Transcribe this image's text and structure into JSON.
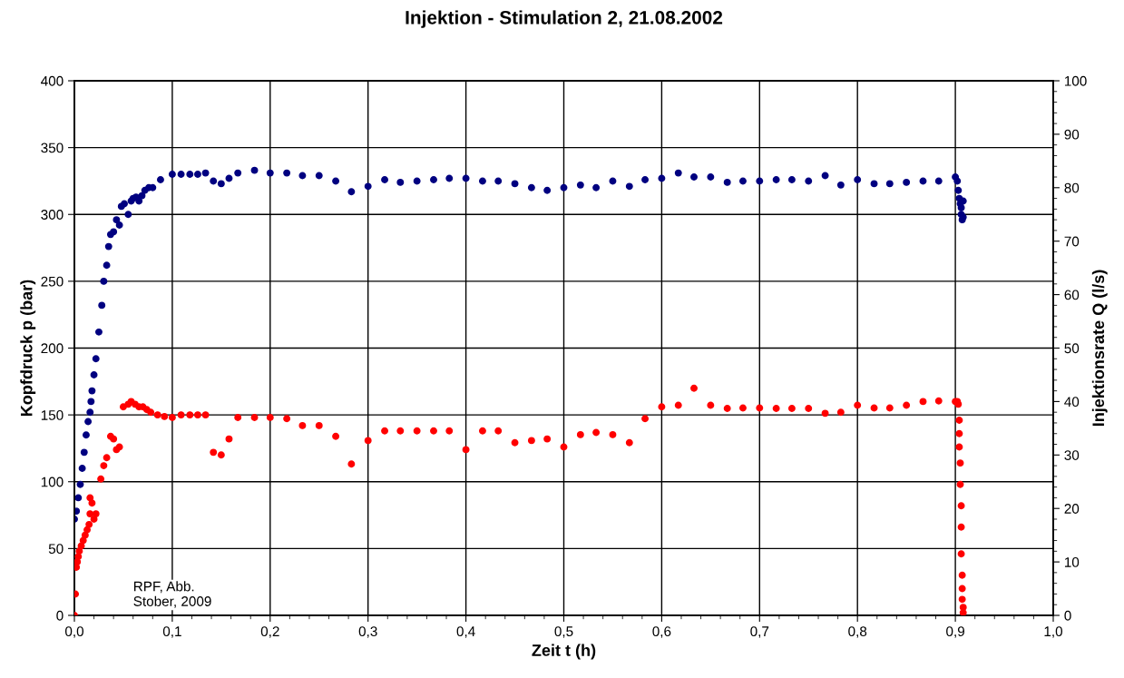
{
  "chart_data": {
    "type": "scatter",
    "title": "Injektion - Stimulation 2, 21.08.2002",
    "xlabel": "Zeit t (h)",
    "ylabel": "Kopfdruck p (bar)",
    "y2label": "Injektionsrate Q (l/s)",
    "xlim": [
      0,
      1.0
    ],
    "xticks": [
      {
        "value": 0,
        "label": "0,0"
      },
      {
        "value": 0.1,
        "label": "0,1"
      },
      {
        "value": 0.2,
        "label": "0,2"
      },
      {
        "value": 0.3,
        "label": "0,3"
      },
      {
        "value": 0.4,
        "label": "0,4"
      },
      {
        "value": 0.5,
        "label": "0,5"
      },
      {
        "value": 0.6,
        "label": "0,6"
      },
      {
        "value": 0.7,
        "label": "0,7"
      },
      {
        "value": 0.8,
        "label": "0,8"
      },
      {
        "value": 0.9,
        "label": "0,9"
      },
      {
        "value": 1.0,
        "label": "1,0"
      }
    ],
    "ylim": [
      0,
      400
    ],
    "yticks": [
      0,
      50,
      100,
      150,
      200,
      250,
      300,
      350,
      400
    ],
    "y2lim": [
      0,
      100
    ],
    "y2ticks": [
      0,
      10,
      20,
      30,
      40,
      50,
      60,
      70,
      80,
      90,
      100
    ],
    "grid": true,
    "marker": "circle",
    "legend": false,
    "annotations": [
      "RPF, Abb.\nStober, 2009"
    ],
    "series": [
      {
        "color": "#000080",
        "x": [
          0.0,
          0.002,
          0.004,
          0.006,
          0.008,
          0.01,
          0.012,
          0.014,
          0.016,
          0.017,
          0.018,
          0.02,
          0.022,
          0.025,
          0.028,
          0.03,
          0.033,
          0.035,
          0.037,
          0.04,
          0.043,
          0.046,
          0.048,
          0.051,
          0.055,
          0.058,
          0.06,
          0.063,
          0.066,
          0.069,
          0.072,
          0.076,
          0.08,
          0.088,
          0.1,
          0.109,
          0.118,
          0.126,
          0.134,
          0.142,
          0.15,
          0.158,
          0.167,
          0.184,
          0.2,
          0.217,
          0.233,
          0.25,
          0.267,
          0.283,
          0.3,
          0.317,
          0.333,
          0.35,
          0.367,
          0.383,
          0.4,
          0.417,
          0.433,
          0.45,
          0.467,
          0.483,
          0.5,
          0.517,
          0.533,
          0.55,
          0.567,
          0.583,
          0.6,
          0.617,
          0.633,
          0.65,
          0.667,
          0.683,
          0.7,
          0.717,
          0.733,
          0.75,
          0.767,
          0.783,
          0.8,
          0.817,
          0.833,
          0.85,
          0.867,
          0.883,
          0.9,
          0.902,
          0.903,
          0.904,
          0.905,
          0.906,
          0.906,
          0.907,
          0.908,
          0.908
        ],
        "values": [
          72,
          78,
          88,
          98,
          110,
          122,
          135,
          145,
          152,
          160,
          168,
          180,
          192,
          212,
          232,
          250,
          262,
          276,
          285,
          287,
          296,
          292,
          306,
          308,
          300,
          310,
          312,
          313,
          310,
          314,
          318,
          320,
          320,
          326,
          330,
          330,
          330,
          330,
          331,
          325,
          323,
          327,
          331,
          333,
          331,
          331,
          329,
          329,
          325,
          317,
          321,
          326,
          324,
          325,
          326,
          327,
          327,
          325,
          325,
          323,
          320,
          318,
          320,
          322,
          320,
          325,
          321,
          326,
          327,
          331,
          328,
          328,
          324,
          325,
          325,
          326,
          326,
          325,
          329,
          322,
          326,
          323,
          323,
          324,
          325,
          325,
          328,
          325,
          318,
          312,
          308,
          305,
          300,
          296,
          298,
          310
        ]
      },
      {
        "color": "#ff0000",
        "axis": "y2",
        "x": [
          0.0,
          0.001,
          0.002,
          0.003,
          0.004,
          0.005,
          0.007,
          0.009,
          0.011,
          0.013,
          0.015,
          0.016,
          0.016,
          0.018,
          0.02,
          0.022,
          0.027,
          0.03,
          0.033,
          0.037,
          0.04,
          0.043,
          0.046,
          0.05,
          0.055,
          0.058,
          0.062,
          0.066,
          0.07,
          0.074,
          0.078,
          0.085,
          0.092,
          0.1,
          0.109,
          0.118,
          0.126,
          0.134,
          0.142,
          0.15,
          0.158,
          0.167,
          0.184,
          0.2,
          0.217,
          0.233,
          0.25,
          0.267,
          0.283,
          0.3,
          0.317,
          0.333,
          0.35,
          0.367,
          0.383,
          0.4,
          0.417,
          0.433,
          0.45,
          0.467,
          0.483,
          0.5,
          0.517,
          0.533,
          0.55,
          0.567,
          0.583,
          0.6,
          0.617,
          0.633,
          0.65,
          0.667,
          0.683,
          0.7,
          0.717,
          0.733,
          0.75,
          0.767,
          0.783,
          0.8,
          0.817,
          0.833,
          0.85,
          0.867,
          0.883,
          0.9,
          0.902,
          0.903,
          0.904,
          0.904,
          0.904,
          0.905,
          0.905,
          0.906,
          0.906,
          0.906,
          0.907,
          0.907,
          0.907,
          0.908,
          0.908
        ],
        "values": [
          0,
          4,
          9,
          10,
          11,
          12,
          13,
          14,
          15,
          16,
          17,
          19,
          22,
          21,
          18,
          19,
          25.5,
          28,
          29.5,
          33.5,
          33,
          31,
          31.5,
          39,
          39.5,
          40,
          39.5,
          39,
          39,
          38.5,
          38,
          37.5,
          37.2,
          37,
          37.5,
          37.5,
          37.5,
          37.5,
          30.5,
          30,
          33,
          37,
          37,
          37,
          36.8,
          35.5,
          35.5,
          33.5,
          28.3,
          32.7,
          34.5,
          34.5,
          34.5,
          34.5,
          34.5,
          31,
          34.5,
          34.5,
          32.3,
          32.7,
          33,
          31.5,
          33.8,
          34.2,
          33.8,
          32.3,
          36.8,
          39,
          39.3,
          42.5,
          39.3,
          38.7,
          38.8,
          38.8,
          38.7,
          38.7,
          38.7,
          37.8,
          38,
          39.3,
          38.8,
          38.8,
          39.3,
          40,
          40.1,
          40,
          40,
          39.5,
          36.5,
          34,
          31.5,
          28.5,
          24.5,
          20.5,
          16.5,
          11.5,
          7.5,
          5,
          3,
          1.5,
          0.5
        ]
      }
    ]
  }
}
